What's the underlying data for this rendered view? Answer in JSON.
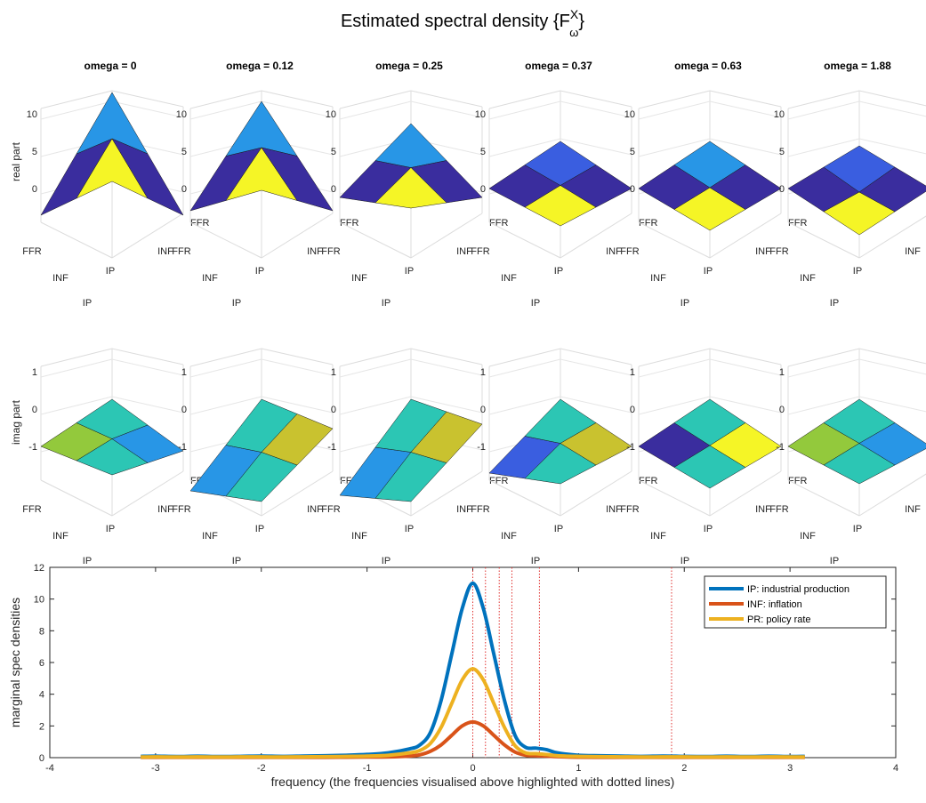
{
  "figure": {
    "title_main": "Estimated spectral density {F",
    "title_sup": "X",
    "title_sub": "ω",
    "title_close": "}"
  },
  "surface_panels": {
    "titles": [
      "omega = 0",
      "omega = 0.12",
      "omega = 0.25",
      "omega = 0.37",
      "omega = 0.63",
      "omega = 1.88"
    ],
    "real_ylabel": "real part",
    "imag_ylabel": "imag part",
    "real_zticks": [
      "0",
      "5",
      "10"
    ],
    "imag_zticks": [
      "-1",
      "0",
      "1"
    ],
    "axis_labels": [
      "FFR",
      "INF",
      "IP"
    ]
  },
  "colors": {
    "navy": "#3a2d9e",
    "blue_mid": "#3a5ee0",
    "blue_light": "#2896e6",
    "cyan": "#2cc6b4",
    "green": "#93c93c",
    "olive": "#c9c22f",
    "yellow": "#f5f526",
    "series_ip": "#0072BD",
    "series_inf": "#D95319",
    "series_pr": "#EDB120",
    "dotted": "#e0302e"
  },
  "chart_data": {
    "type": "line",
    "xlabel": "frequency (the frequencies visualised above highlighted with dotted lines)",
    "ylabel": "marginal spec densities",
    "xlim": [
      -4,
      4
    ],
    "ylim": [
      0,
      12
    ],
    "xticks": [
      -4,
      -3,
      -2,
      -1,
      0,
      1,
      2,
      3,
      4
    ],
    "yticks": [
      0,
      2,
      4,
      6,
      8,
      10,
      12
    ],
    "highlighted_frequencies": [
      0,
      0.12,
      0.25,
      0.37,
      0.63,
      1.88
    ],
    "legend_position": "top-right",
    "x": [
      -3.14,
      -3.0,
      -2.8,
      -2.6,
      -2.4,
      -2.2,
      -2.0,
      -1.8,
      -1.6,
      -1.4,
      -1.2,
      -1.0,
      -0.8,
      -0.6,
      -0.5,
      -0.4,
      -0.3,
      -0.2,
      -0.1,
      0,
      0.1,
      0.2,
      0.3,
      0.4,
      0.5,
      0.6,
      0.7,
      0.8,
      1.0,
      1.2,
      1.4,
      1.6,
      1.8,
      2.0,
      2.2,
      2.4,
      2.6,
      2.8,
      3.0,
      3.14
    ],
    "series": [
      {
        "name": "IP: industrial production",
        "values": [
          0.08,
          0.09,
          0.07,
          0.09,
          0.07,
          0.08,
          0.1,
          0.08,
          0.1,
          0.12,
          0.15,
          0.2,
          0.3,
          0.55,
          0.8,
          1.6,
          3.6,
          6.5,
          9.4,
          11.0,
          9.4,
          6.5,
          3.6,
          1.4,
          0.65,
          0.6,
          0.5,
          0.3,
          0.15,
          0.12,
          0.1,
          0.08,
          0.1,
          0.08,
          0.07,
          0.09,
          0.07,
          0.09,
          0.07,
          0.08
        ]
      },
      {
        "name": "INF: inflation",
        "values": [
          0.02,
          0.02,
          0.02,
          0.02,
          0.02,
          0.02,
          0.02,
          0.02,
          0.02,
          0.02,
          0.03,
          0.04,
          0.05,
          0.1,
          0.18,
          0.4,
          0.8,
          1.4,
          2.0,
          2.25,
          2.0,
          1.4,
          0.8,
          0.35,
          0.15,
          0.12,
          0.1,
          0.06,
          0.03,
          0.02,
          0.02,
          0.02,
          0.02,
          0.02,
          0.02,
          0.02,
          0.02,
          0.02,
          0.02,
          0.02
        ]
      },
      {
        "name": "PR: policy rate",
        "values": [
          0.04,
          0.05,
          0.04,
          0.05,
          0.04,
          0.05,
          0.05,
          0.04,
          0.05,
          0.06,
          0.08,
          0.1,
          0.15,
          0.3,
          0.45,
          0.9,
          1.9,
          3.4,
          4.9,
          5.6,
          4.9,
          3.4,
          1.9,
          0.75,
          0.3,
          0.25,
          0.2,
          0.12,
          0.08,
          0.06,
          0.05,
          0.04,
          0.05,
          0.05,
          0.04,
          0.05,
          0.04,
          0.05,
          0.04,
          0.04
        ]
      }
    ]
  }
}
